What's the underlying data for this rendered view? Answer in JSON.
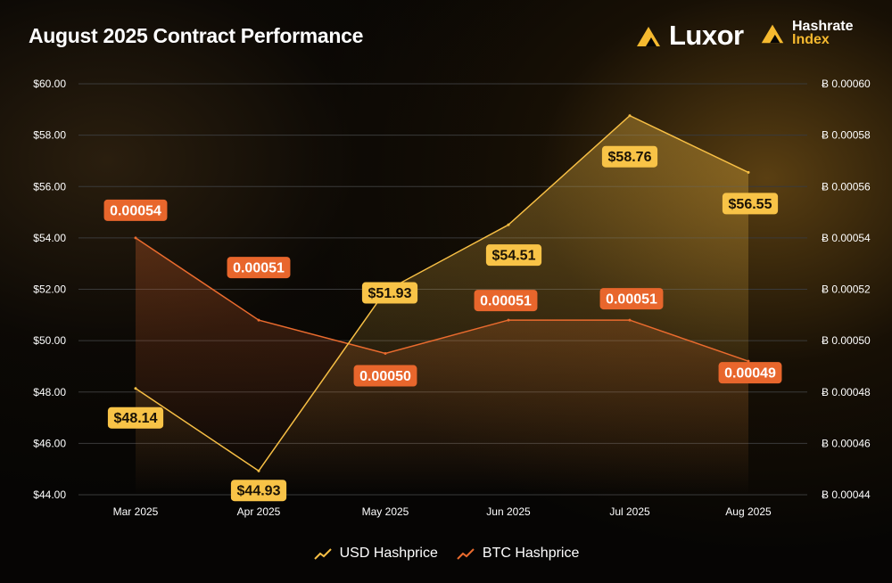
{
  "title": "August 2025 Contract Performance",
  "brands": {
    "luxor": "Luxor",
    "hashrate_line1": "Hashrate",
    "hashrate_line2": "Index"
  },
  "colors": {
    "usd": "#f7bf45",
    "btc": "#ea6b2e",
    "usd_label_bg": "#f8c347",
    "btc_label_bg": "#e8662c",
    "grid": "#3a3a3a",
    "axis_text": "#ffffff"
  },
  "chart_data": {
    "type": "line",
    "categories": [
      "Mar 2025",
      "Apr 2025",
      "May 2025",
      "Jun 2025",
      "Jul 2025",
      "Aug 2025"
    ],
    "y_left": {
      "ticks": [
        "$60.00",
        "$58.00",
        "$56.00",
        "$54.00",
        "$52.00",
        "$50.00",
        "$48.00",
        "$46.00",
        "$44.00"
      ],
      "min": 44,
      "max": 60
    },
    "y_right": {
      "ticks": [
        "Ƀ 0.00060",
        "Ƀ 0.00058",
        "Ƀ 0.00056",
        "Ƀ 0.00054",
        "Ƀ 0.00052",
        "Ƀ 0.00050",
        "Ƀ 0.00048",
        "Ƀ 0.00046",
        "Ƀ 0.00044"
      ],
      "min": 0.00044,
      "max": 0.0006
    },
    "series": [
      {
        "name": "USD Hashprice",
        "axis": "left",
        "values": [
          48.14,
          44.93,
          51.93,
          54.51,
          58.76,
          56.55
        ],
        "labels": [
          "$48.14",
          "$44.93",
          "$51.93",
          "$54.51",
          "$58.76",
          "$56.55"
        ]
      },
      {
        "name": "BTC Hashprice",
        "axis": "right",
        "values": [
          0.00054,
          0.000508,
          0.000495,
          0.000508,
          0.000508,
          0.000492
        ],
        "labels": [
          "0.00054",
          "0.00051",
          "0.00050",
          "0.00051",
          "0.00051",
          "0.00049"
        ]
      }
    ],
    "legend": [
      "USD Hashprice",
      "BTC Hashprice"
    ],
    "grid": true
  }
}
